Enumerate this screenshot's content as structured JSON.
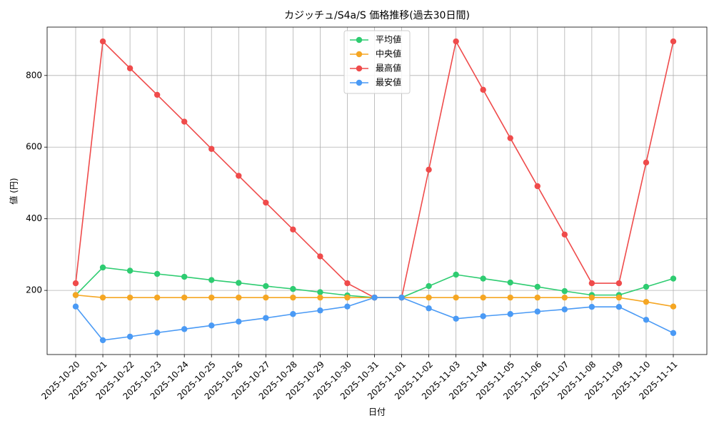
{
  "chart_data": {
    "type": "line",
    "title": "カジッチュ/S4a/S 価格推移(過去30日間)",
    "x_label": "日付",
    "y_label": "値 (円)",
    "categories": [
      "2025-10-20",
      "2025-10-21",
      "2025-10-22",
      "2025-10-23",
      "2025-10-24",
      "2025-10-25",
      "2025-10-26",
      "2025-10-27",
      "2025-10-28",
      "2025-10-29",
      "2025-10-30",
      "2025-10-31",
      "2025-11-01",
      "2025-11-02",
      "2025-11-03",
      "2025-11-04",
      "2025-11-05",
      "2025-11-06",
      "2025-11-07",
      "2025-11-08",
      "2025-11-09",
      "2025-11-10",
      "2025-11-11"
    ],
    "series": [
      {
        "name": "平均値",
        "color": "#2ecc71",
        "values": [
          187,
          264,
          255,
          246,
          238,
          229,
          221,
          212,
          204,
          195,
          186,
          180,
          180,
          212,
          244,
          233,
          222,
          210,
          198,
          187,
          187,
          210,
          233
        ]
      },
      {
        "name": "中央値",
        "color": "#f5a623",
        "values": [
          187,
          180,
          180,
          180,
          180,
          180,
          180,
          180,
          180,
          180,
          180,
          180,
          180,
          180,
          180,
          180,
          180,
          180,
          180,
          180,
          180,
          168,
          155
        ]
      },
      {
        "name": "最高値",
        "color": "#ef4b4b",
        "values": [
          220,
          895,
          820,
          746,
          671,
          595,
          520,
          445,
          370,
          295,
          220,
          180,
          180,
          537,
          895,
          760,
          625,
          491,
          356,
          220,
          220,
          557,
          895
        ]
      },
      {
        "name": "最安値",
        "color": "#4a9af5",
        "values": [
          155,
          61,
          71,
          82,
          92,
          102,
          113,
          123,
          134,
          144,
          155,
          180,
          180,
          150,
          121,
          128,
          134,
          141,
          147,
          154,
          154,
          118,
          81
        ]
      }
    ],
    "ylim": [
      21,
      935
    ],
    "yticks": [
      200,
      400,
      600,
      800
    ],
    "grid": true,
    "legend": "upper center"
  }
}
